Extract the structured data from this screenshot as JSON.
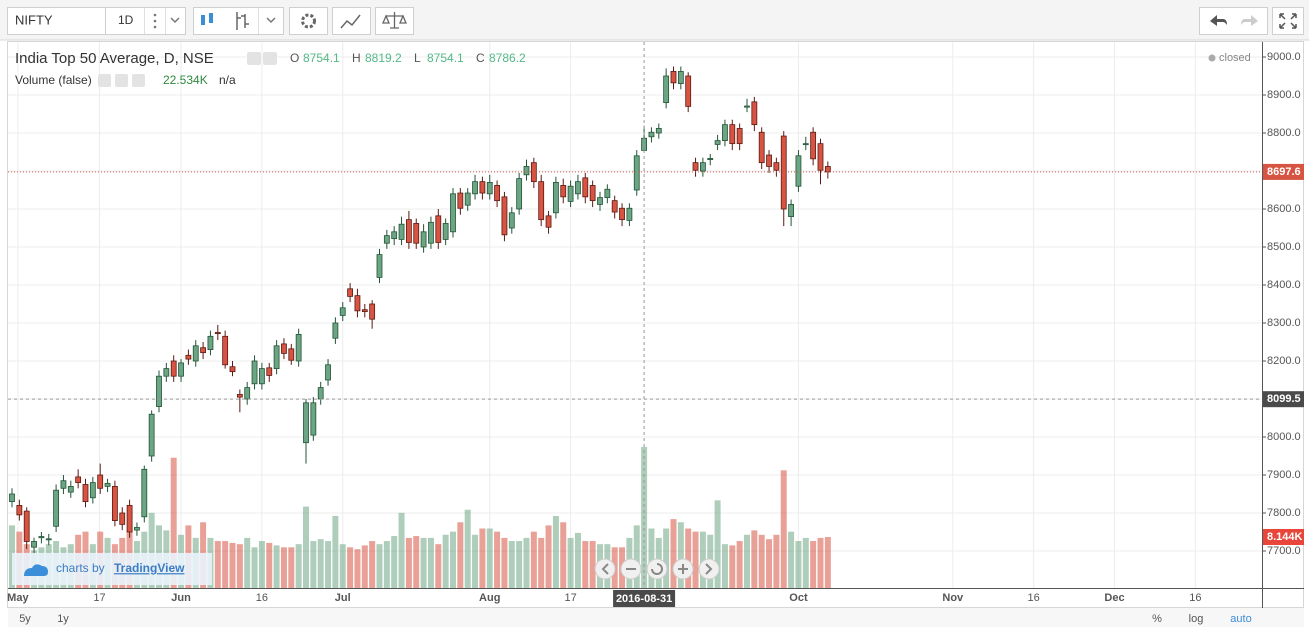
{
  "toolbar": {
    "symbol": "NIFTY",
    "interval": "1D"
  },
  "footer": {
    "ranges": [
      "5y",
      "1y"
    ],
    "options": [
      "%",
      "log",
      "auto"
    ]
  },
  "branding": {
    "prefix": "charts by",
    "name": "TradingView"
  },
  "chart_data": {
    "type": "candlestick",
    "title": "India Top 50 Average, D, NSE",
    "status": "closed",
    "ohlc_labels": [
      "O",
      "H",
      "L",
      "C"
    ],
    "volume_title": "Volume (false)",
    "volume_extra": "n/a",
    "crosshair": {
      "x": 86,
      "date_label": "2016-08-31",
      "price": 8099.5,
      "volume_label": "22.534K"
    },
    "last_volume_label": "8.144K",
    "xlim": [
      -0.544,
      170.07
    ],
    "xticks": [
      {
        "value": 0.8,
        "label": "May"
      },
      {
        "value": 11.9,
        "label": "17"
      },
      {
        "value": 23,
        "label": "Jun"
      },
      {
        "value": 34,
        "label": "16"
      },
      {
        "value": 45,
        "label": "Jul"
      },
      {
        "value": 65,
        "label": "Aug"
      },
      {
        "value": 76,
        "label": "17"
      },
      {
        "value": 107,
        "label": "Oct"
      },
      {
        "value": 128,
        "label": "Nov"
      },
      {
        "value": 139,
        "label": "16"
      },
      {
        "value": 150,
        "label": "Dec"
      },
      {
        "value": 161,
        "label": "16"
      }
    ],
    "ylim": [
      7602.6,
      9039.5
    ],
    "yticks": [
      {
        "value": 7700,
        "label": "7700.0"
      },
      {
        "value": 7800,
        "label": "7800.0"
      },
      {
        "value": 7900,
        "label": "7900.0"
      },
      {
        "value": 8000,
        "label": "8000.0"
      },
      {
        "value": 8100,
        "label": "8100.0"
      },
      {
        "value": 8200,
        "label": "8200.0"
      },
      {
        "value": 8300,
        "label": "8300.0"
      },
      {
        "value": 8400,
        "label": "8400.0"
      },
      {
        "value": 8500,
        "label": "8500.0"
      },
      {
        "value": 8600,
        "label": "8600.0"
      },
      {
        "value": 8700,
        "label": "8700.0"
      },
      {
        "value": 8800,
        "label": "8800.0"
      },
      {
        "value": 8900,
        "label": "8900.0"
      },
      {
        "value": 9000,
        "label": "9000.0"
      }
    ],
    "volume_ylim": [
      0,
      87.2
    ],
    "grid": true,
    "up_color": "#6ba583",
    "down_color": "#d75442",
    "open": [
      7830,
      7820,
      7805,
      7710,
      7735,
      7730,
      7765,
      7865,
      7855,
      7895,
      7875,
      7840,
      7900,
      7870,
      7870,
      7800,
      7820,
      7755,
      7790,
      7950,
      8080,
      8160,
      8200,
      8160,
      8215,
      8200,
      8235,
      8230,
      8275,
      8265,
      8185,
      8112,
      8100,
      8140,
      8140,
      8182,
      8180,
      8245,
      8232,
      8200,
      7985,
      8005,
      8100,
      8150,
      8260,
      8320,
      8390,
      8372,
      8335,
      8350,
      8420,
      8510,
      8522,
      8520,
      8572,
      8562,
      8500,
      8510,
      8582,
      8520,
      8540,
      8642,
      8610,
      8640,
      8672,
      8640,
      8662,
      8632,
      8550,
      8600,
      8690,
      8722,
      8672,
      8582,
      8590,
      8662,
      8620,
      8640,
      8682,
      8662,
      8612,
      8630,
      8622,
      8602,
      8570,
      8650,
      8754.1,
      8790,
      8800,
      8880,
      8962,
      8930,
      8950,
      8722,
      8700,
      8730,
      8770,
      8780,
      8822,
      8812,
      8868,
      8882,
      8802,
      8742,
      8722,
      8792,
      8580,
      8660,
      8770,
      8802,
      8772,
      8712
    ],
    "high": [
      7865,
      7835,
      7815,
      7735,
      7750,
      7745,
      7875,
      7900,
      7885,
      7915,
      7890,
      7895,
      7930,
      7890,
      7885,
      7815,
      7835,
      7775,
      7925,
      8070,
      8175,
      8195,
      8215,
      8205,
      8230,
      8255,
      8250,
      8280,
      8295,
      8280,
      8200,
      8125,
      8145,
      8215,
      8195,
      8195,
      8255,
      8260,
      8245,
      8285,
      8100,
      8105,
      8145,
      8205,
      8315,
      8355,
      8405,
      8390,
      8350,
      8360,
      8495,
      8545,
      8555,
      8580,
      8595,
      8575,
      8560,
      8580,
      8600,
      8575,
      8655,
      8655,
      8655,
      8690,
      8685,
      8690,
      8675,
      8645,
      8605,
      8695,
      8730,
      8735,
      8690,
      8595,
      8685,
      8680,
      8675,
      8690,
      8695,
      8675,
      8645,
      8665,
      8635,
      8615,
      8615,
      8755,
      8819.2,
      8815,
      8825,
      8970,
      8975,
      8975,
      8960,
      8735,
      8735,
      8745,
      8795,
      8835,
      8835,
      8825,
      8890,
      8895,
      8815,
      8755,
      8735,
      8805,
      8625,
      8755,
      8790,
      8815,
      8785,
      8725
    ],
    "low": [
      7815,
      7780,
      7705,
      7695,
      7720,
      7715,
      7750,
      7850,
      7840,
      7865,
      7815,
      7825,
      7850,
      7855,
      7765,
      7755,
      7735,
      7740,
      7775,
      7935,
      8065,
      8145,
      8145,
      8145,
      8190,
      8185,
      8205,
      8215,
      8255,
      8180,
      8160,
      8065,
      8085,
      8125,
      8125,
      8145,
      8165,
      8205,
      8190,
      8185,
      7930,
      7990,
      8085,
      8135,
      8245,
      8305,
      8355,
      8315,
      8315,
      8285,
      8405,
      8495,
      8505,
      8505,
      8495,
      8495,
      8485,
      8495,
      8495,
      8505,
      8525,
      8585,
      8595,
      8625,
      8625,
      8625,
      8605,
      8515,
      8535,
      8585,
      8675,
      8655,
      8555,
      8535,
      8575,
      8615,
      8605,
      8625,
      8615,
      8605,
      8595,
      8615,
      8575,
      8555,
      8555,
      8635,
      8754.1,
      8775,
      8785,
      8865,
      8915,
      8915,
      8855,
      8685,
      8685,
      8715,
      8755,
      8765,
      8755,
      8755,
      8855,
      8805,
      8705,
      8695,
      8685,
      8555,
      8555,
      8645,
      8755,
      8715,
      8665,
      8680
    ],
    "close": [
      7850,
      7795,
      7725,
      7725,
      7738,
      7732,
      7860,
      7885,
      7870,
      7880,
      7830,
      7880,
      7865,
      7878,
      7780,
      7770,
      7750,
      7762,
      7915,
      8060,
      8160,
      8180,
      8160,
      8195,
      8205,
      8240,
      8222,
      8265,
      8272,
      8190,
      8172,
      8105,
      8130,
      8200,
      8180,
      8162,
      8240,
      8220,
      8202,
      8270,
      8090,
      8090,
      8130,
      8190,
      8300,
      8340,
      8370,
      8332,
      8330,
      8310,
      8480,
      8530,
      8540,
      8560,
      8512,
      8510,
      8540,
      8565,
      8512,
      8562,
      8640,
      8602,
      8642,
      8672,
      8642,
      8670,
      8622,
      8532,
      8590,
      8680,
      8712,
      8672,
      8572,
      8552,
      8670,
      8632,
      8660,
      8672,
      8632,
      8622,
      8630,
      8652,
      8592,
      8572,
      8602,
      8740,
      8786.2,
      8802,
      8812,
      8950,
      8932,
      8962,
      8870,
      8702,
      8722,
      8733,
      8780,
      8822,
      8772,
      8772,
      8871,
      8822,
      8722,
      8712,
      8702,
      8600,
      8612,
      8740,
      8772,
      8732,
      8702,
      8697.6
    ],
    "volume": [
      10,
      9,
      7,
      6,
      6.5,
      7,
      7.5,
      6.5,
      7,
      8.5,
      9,
      7,
      9,
      8,
      7,
      8,
      9.5,
      7.5,
      9,
      12,
      10,
      9.2,
      20.8,
      8.5,
      10,
      8,
      10.5,
      8,
      7.5,
      7.5,
      7.2,
      7,
      8,
      6.5,
      7.5,
      7.2,
      6.8,
      6.5,
      6.5,
      7,
      13,
      7.5,
      7.8,
      7.5,
      11.5,
      7,
      6.5,
      6.2,
      6.8,
      7.5,
      7,
      7.5,
      8.3,
      12,
      8,
      8.3,
      8,
      8,
      7,
      8.5,
      9,
      10.5,
      12.5,
      8.5,
      9.5,
      9.5,
      9,
      8,
      7.5,
      7.5,
      8,
      9,
      8,
      10,
      11.5,
      10.5,
      8,
      8.8,
      7.5,
      7.5,
      7,
      7,
      6.5,
      6.5,
      8,
      10,
      22.534,
      9.5,
      8,
      9.5,
      11,
      10.5,
      9.5,
      9,
      9,
      8.5,
      14,
      7,
      6.8,
      7.5,
      8.5,
      9.2,
      8.5,
      7.8,
      8.5,
      18.8,
      9,
      7.5,
      8,
      7.5,
      8,
      8.144
    ]
  }
}
